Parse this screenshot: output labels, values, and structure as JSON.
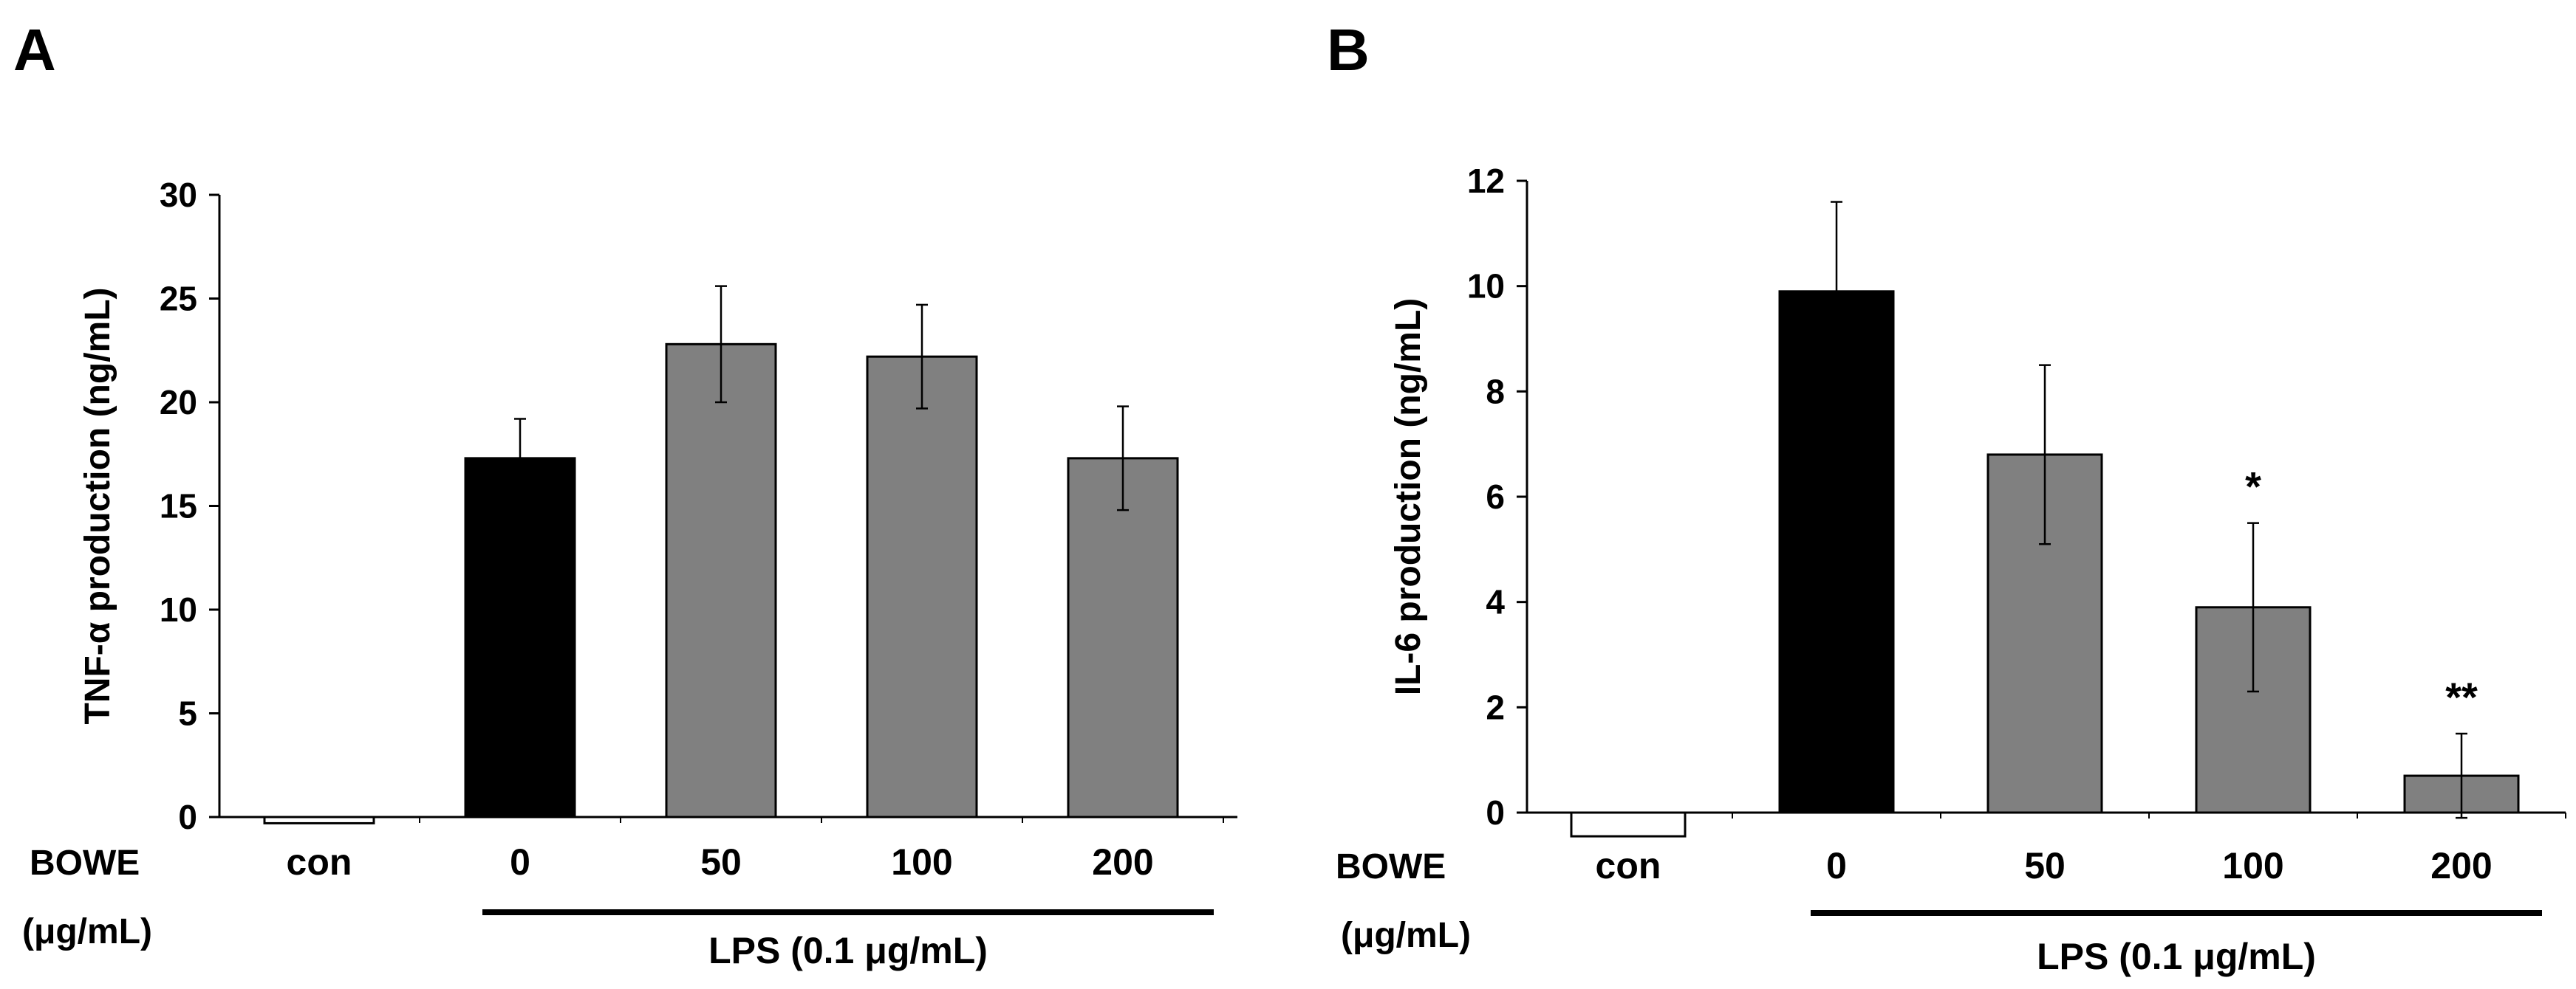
{
  "chart_data": [
    {
      "panel_label": "A",
      "type": "bar",
      "ylabel": "TNF-α production (ng/mL)",
      "ylim": [
        0,
        30
      ],
      "yticks": [
        "0",
        "5",
        "10",
        "15",
        "20",
        "25",
        "30"
      ],
      "categories": [
        "con",
        "0",
        "50",
        "100",
        "200"
      ],
      "values": [
        -0.3,
        17.3,
        22.8,
        22.2,
        17.3
      ],
      "errors": [
        0,
        1.9,
        2.8,
        2.5,
        2.5
      ],
      "bar_colors": [
        "#ffffff",
        "#000000",
        "#808080",
        "#808080",
        "#808080"
      ],
      "significance": [
        "",
        "",
        "",
        "",
        ""
      ],
      "treatment_label_line1": "BOWE",
      "treatment_label_line2": "(μg/mL)",
      "group_label": "LPS (0.1 μg/mL)"
    },
    {
      "panel_label": "B",
      "type": "bar",
      "ylabel": "IL-6 production (ng/mL)",
      "ylim": [
        0,
        12
      ],
      "yticks": [
        "0",
        "2",
        "4",
        "6",
        "8",
        "10",
        "12"
      ],
      "categories": [
        "con",
        "0",
        "50",
        "100",
        "200"
      ],
      "values": [
        -0.45,
        9.9,
        6.8,
        3.9,
        0.7
      ],
      "errors": [
        0,
        1.7,
        1.7,
        1.6,
        0.8
      ],
      "bar_colors": [
        "#ffffff",
        "#000000",
        "#808080",
        "#808080",
        "#808080"
      ],
      "significance": [
        "",
        "",
        "",
        "*",
        "**"
      ],
      "treatment_label_line1": "BOWE",
      "treatment_label_line2": "(μg/mL)",
      "group_label": "LPS (0.1 μg/mL)"
    }
  ]
}
